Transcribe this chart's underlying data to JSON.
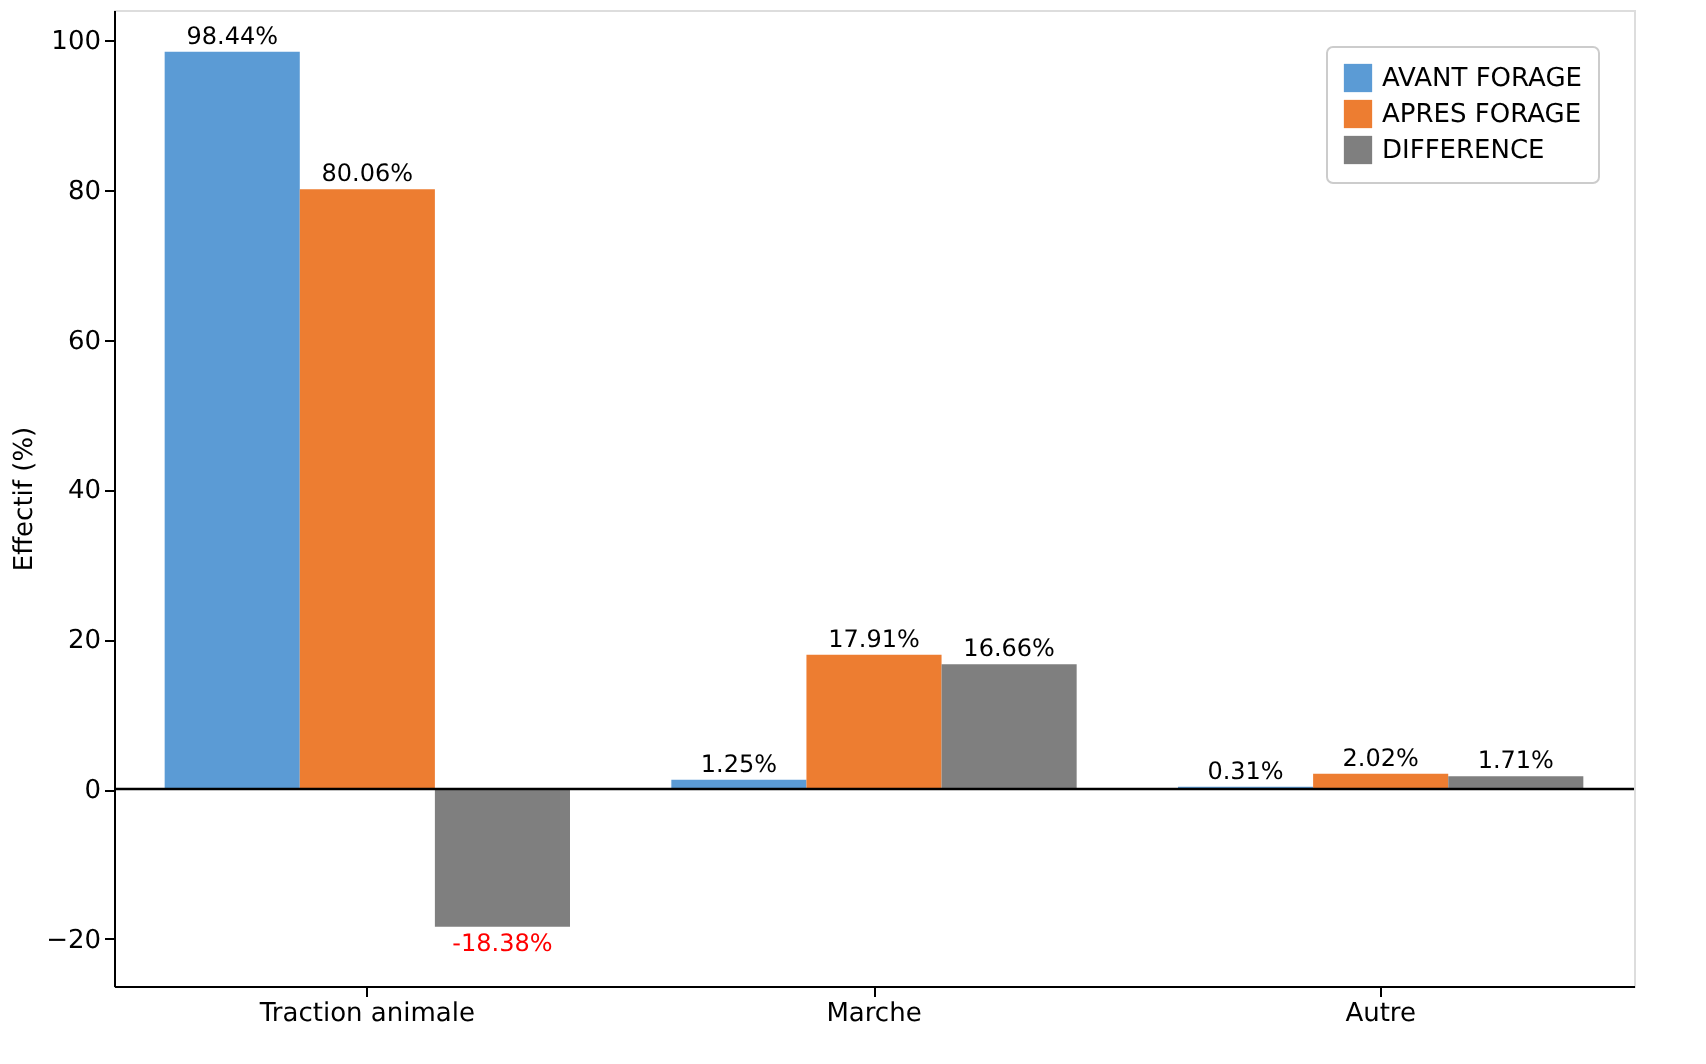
{
  "chart_data": {
    "type": "bar",
    "ylabel": "Effectif (%)",
    "categories": [
      "Traction animale",
      "Marche",
      "Autre"
    ],
    "series": [
      {
        "name": "AVANT FORAGE",
        "color": "#5b9bd5",
        "values": [
          98.44,
          1.25,
          0.31
        ],
        "value_labels": [
          "98.44%",
          "1.25%",
          "0.31%"
        ]
      },
      {
        "name": "APRES FORAGE",
        "color": "#ed7d31",
        "values": [
          80.06,
          17.91,
          2.02
        ],
        "value_labels": [
          "80.06%",
          "17.91%",
          "2.02%"
        ]
      },
      {
        "name": "DIFFERENCE",
        "color": "#7f7f7f",
        "values": [
          -18.38,
          16.66,
          1.71
        ],
        "value_labels": [
          "-18.38%",
          "16.66%",
          "1.71%"
        ]
      }
    ],
    "ylim": [
      -26.3,
      104
    ],
    "yticks": [
      -20,
      0,
      20,
      40,
      60,
      80,
      100
    ],
    "ref_lines": [
      {
        "axis": "y",
        "value": 0,
        "color": "#000000"
      }
    ],
    "legend": "top right",
    "grid": false
  }
}
